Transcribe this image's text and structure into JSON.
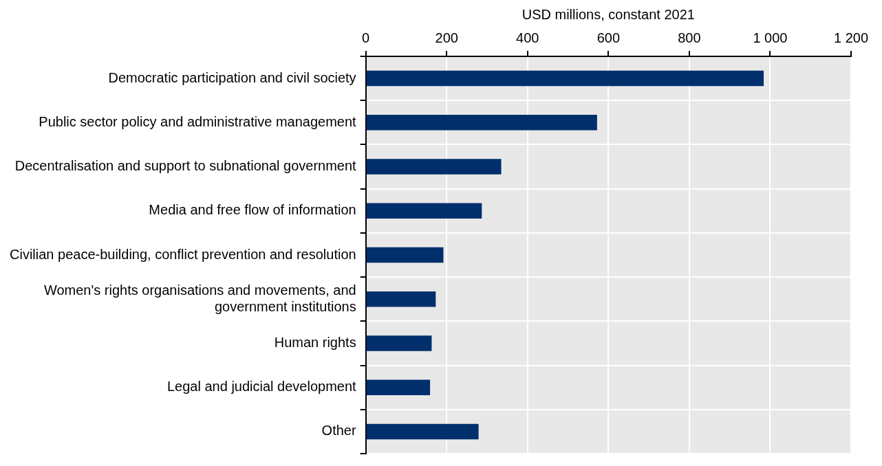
{
  "chart_data": {
    "type": "bar",
    "orientation": "horizontal",
    "xlabel": "USD millions, constant 2021",
    "categories": [
      "Democratic participation and civil society",
      "Public sector policy and administrative management",
      "Decentralisation and support to subnational government",
      "Media and free flow of information",
      "Civilian peace-building, conflict prevention and resolution",
      "Women's rights organisations and movements, and government institutions",
      "Human rights",
      "Legal and judicial development",
      "Other"
    ],
    "values": [
      984,
      572,
      335,
      287,
      192,
      173,
      163,
      159,
      279
    ],
    "color": "#002f6c",
    "xlim": [
      0,
      1200
    ],
    "xticks": [
      0,
      200,
      400,
      600,
      800,
      {
        "value": 1000,
        "label": "1 000"
      },
      {
        "value": 1200,
        "label": "1 200"
      }
    ],
    "grid": true,
    "legend": false
  }
}
